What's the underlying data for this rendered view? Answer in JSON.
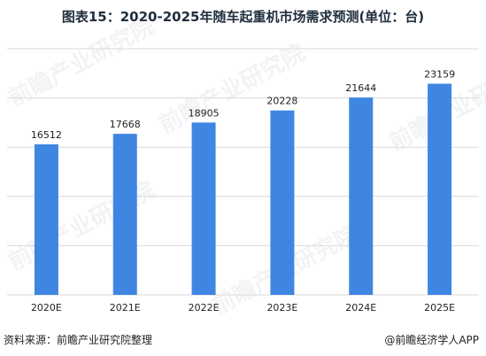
{
  "chart_data": {
    "type": "bar",
    "title": "图表15：2020-2025年随车起重机市场需求预测(单位：台)",
    "categories": [
      "2020E",
      "2021E",
      "2022E",
      "2023E",
      "2024E",
      "2025E"
    ],
    "values": [
      16512,
      17668,
      18905,
      20228,
      21644,
      23159
    ],
    "xlabel": "",
    "ylabel": "",
    "ylim": [
      0,
      27000
    ],
    "grid": true,
    "bar_color": "#3f86e3"
  },
  "footer": {
    "source": "资料来源：前瞻产业研究院整理",
    "brand": "@前瞻经济学人APP"
  },
  "watermark": {
    "text": "前瞻产业研究院"
  },
  "colors": {
    "bar": "#3f86e3",
    "grid": "#d9d9d9",
    "text": "#222222"
  }
}
